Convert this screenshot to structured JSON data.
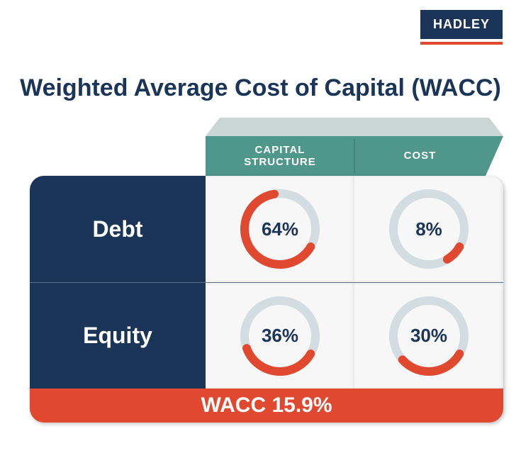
{
  "brand": {
    "name": "HADLEY",
    "bg": "#1b3559",
    "underline": "#e0482f"
  },
  "title": "Weighted Average Cost of Capital (WACC)",
  "colors": {
    "navy": "#1b3559",
    "teal": "#4f968b",
    "teal_light": "#c9d6d4",
    "orange": "#e0482f",
    "track": "#d3dde1",
    "cell_bg": "#f7f7f7",
    "text_dark": "#1b3559"
  },
  "columns": [
    {
      "label": "CAPITAL\nSTRUCTURE"
    },
    {
      "label": "COST"
    }
  ],
  "rows": [
    {
      "label": "Debt",
      "cells": [
        {
          "value": 64,
          "display": "64%"
        },
        {
          "value": 8,
          "display": "8%"
        }
      ]
    },
    {
      "label": "Equity",
      "cells": [
        {
          "value": 36,
          "display": "36%"
        },
        {
          "value": 30,
          "display": "30%"
        }
      ]
    }
  ],
  "footer": "WACC 15.9%",
  "donut": {
    "radius": 50,
    "stroke_width": 12,
    "track_color": "#d3dde1",
    "fill_color": "#e0482f",
    "start_angle_deg": 120
  }
}
